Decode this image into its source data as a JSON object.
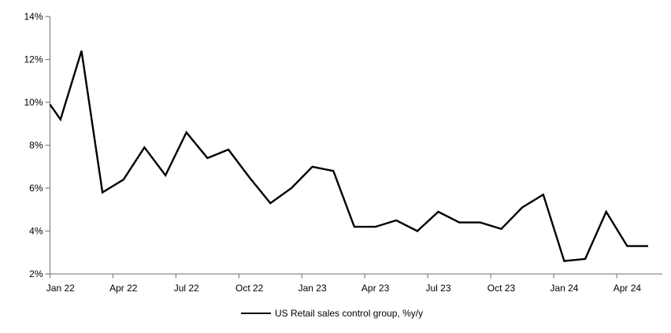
{
  "chart_data": {
    "type": "line",
    "title": "",
    "legend_label": "US Retail sales control group, %y/y",
    "legend_position": "bottom-center",
    "grid": "off",
    "line_color": "#000000",
    "axis_color": "#8a8a8a",
    "ylim": [
      2,
      14
    ],
    "y_tick_step": 2,
    "y_tick_labels": [
      "2%",
      "4%",
      "6%",
      "8%",
      "10%",
      "12%",
      "14%"
    ],
    "x_tick_labels": [
      "Jan 22",
      "Apr 22",
      "Jul 22",
      "Oct 22",
      "Jan 23",
      "Apr 23",
      "Jul 23",
      "Oct 23",
      "Jan 24",
      "Apr 24"
    ],
    "x": [
      "Jan 22",
      "Feb 22",
      "Mar 22",
      "Apr 22",
      "May 22",
      "Jun 22",
      "Jul 22",
      "Aug 22",
      "Sep 22",
      "Oct 22",
      "Nov 22",
      "Dec 22",
      "Jan 23",
      "Feb 23",
      "Mar 23",
      "Apr 23",
      "May 23",
      "Jun 23",
      "Jul 23",
      "Aug 23",
      "Sep 23",
      "Oct 23",
      "Nov 23",
      "Dec 23",
      "Jan 24",
      "Feb 24",
      "Mar 24",
      "Apr 24",
      "May 24"
    ],
    "series": [
      {
        "name": "US Retail sales control group, %y/y",
        "values": [
          9.2,
          12.4,
          5.8,
          6.4,
          7.9,
          6.6,
          8.6,
          7.4,
          7.8,
          6.5,
          5.3,
          6.0,
          7.0,
          6.8,
          4.2,
          4.2,
          4.5,
          4.0,
          4.9,
          4.4,
          4.4,
          4.1,
          5.1,
          5.7,
          2.6,
          2.7,
          4.9,
          3.3,
          3.3
        ]
      }
    ],
    "left_edge_entry_value": 9.9
  }
}
